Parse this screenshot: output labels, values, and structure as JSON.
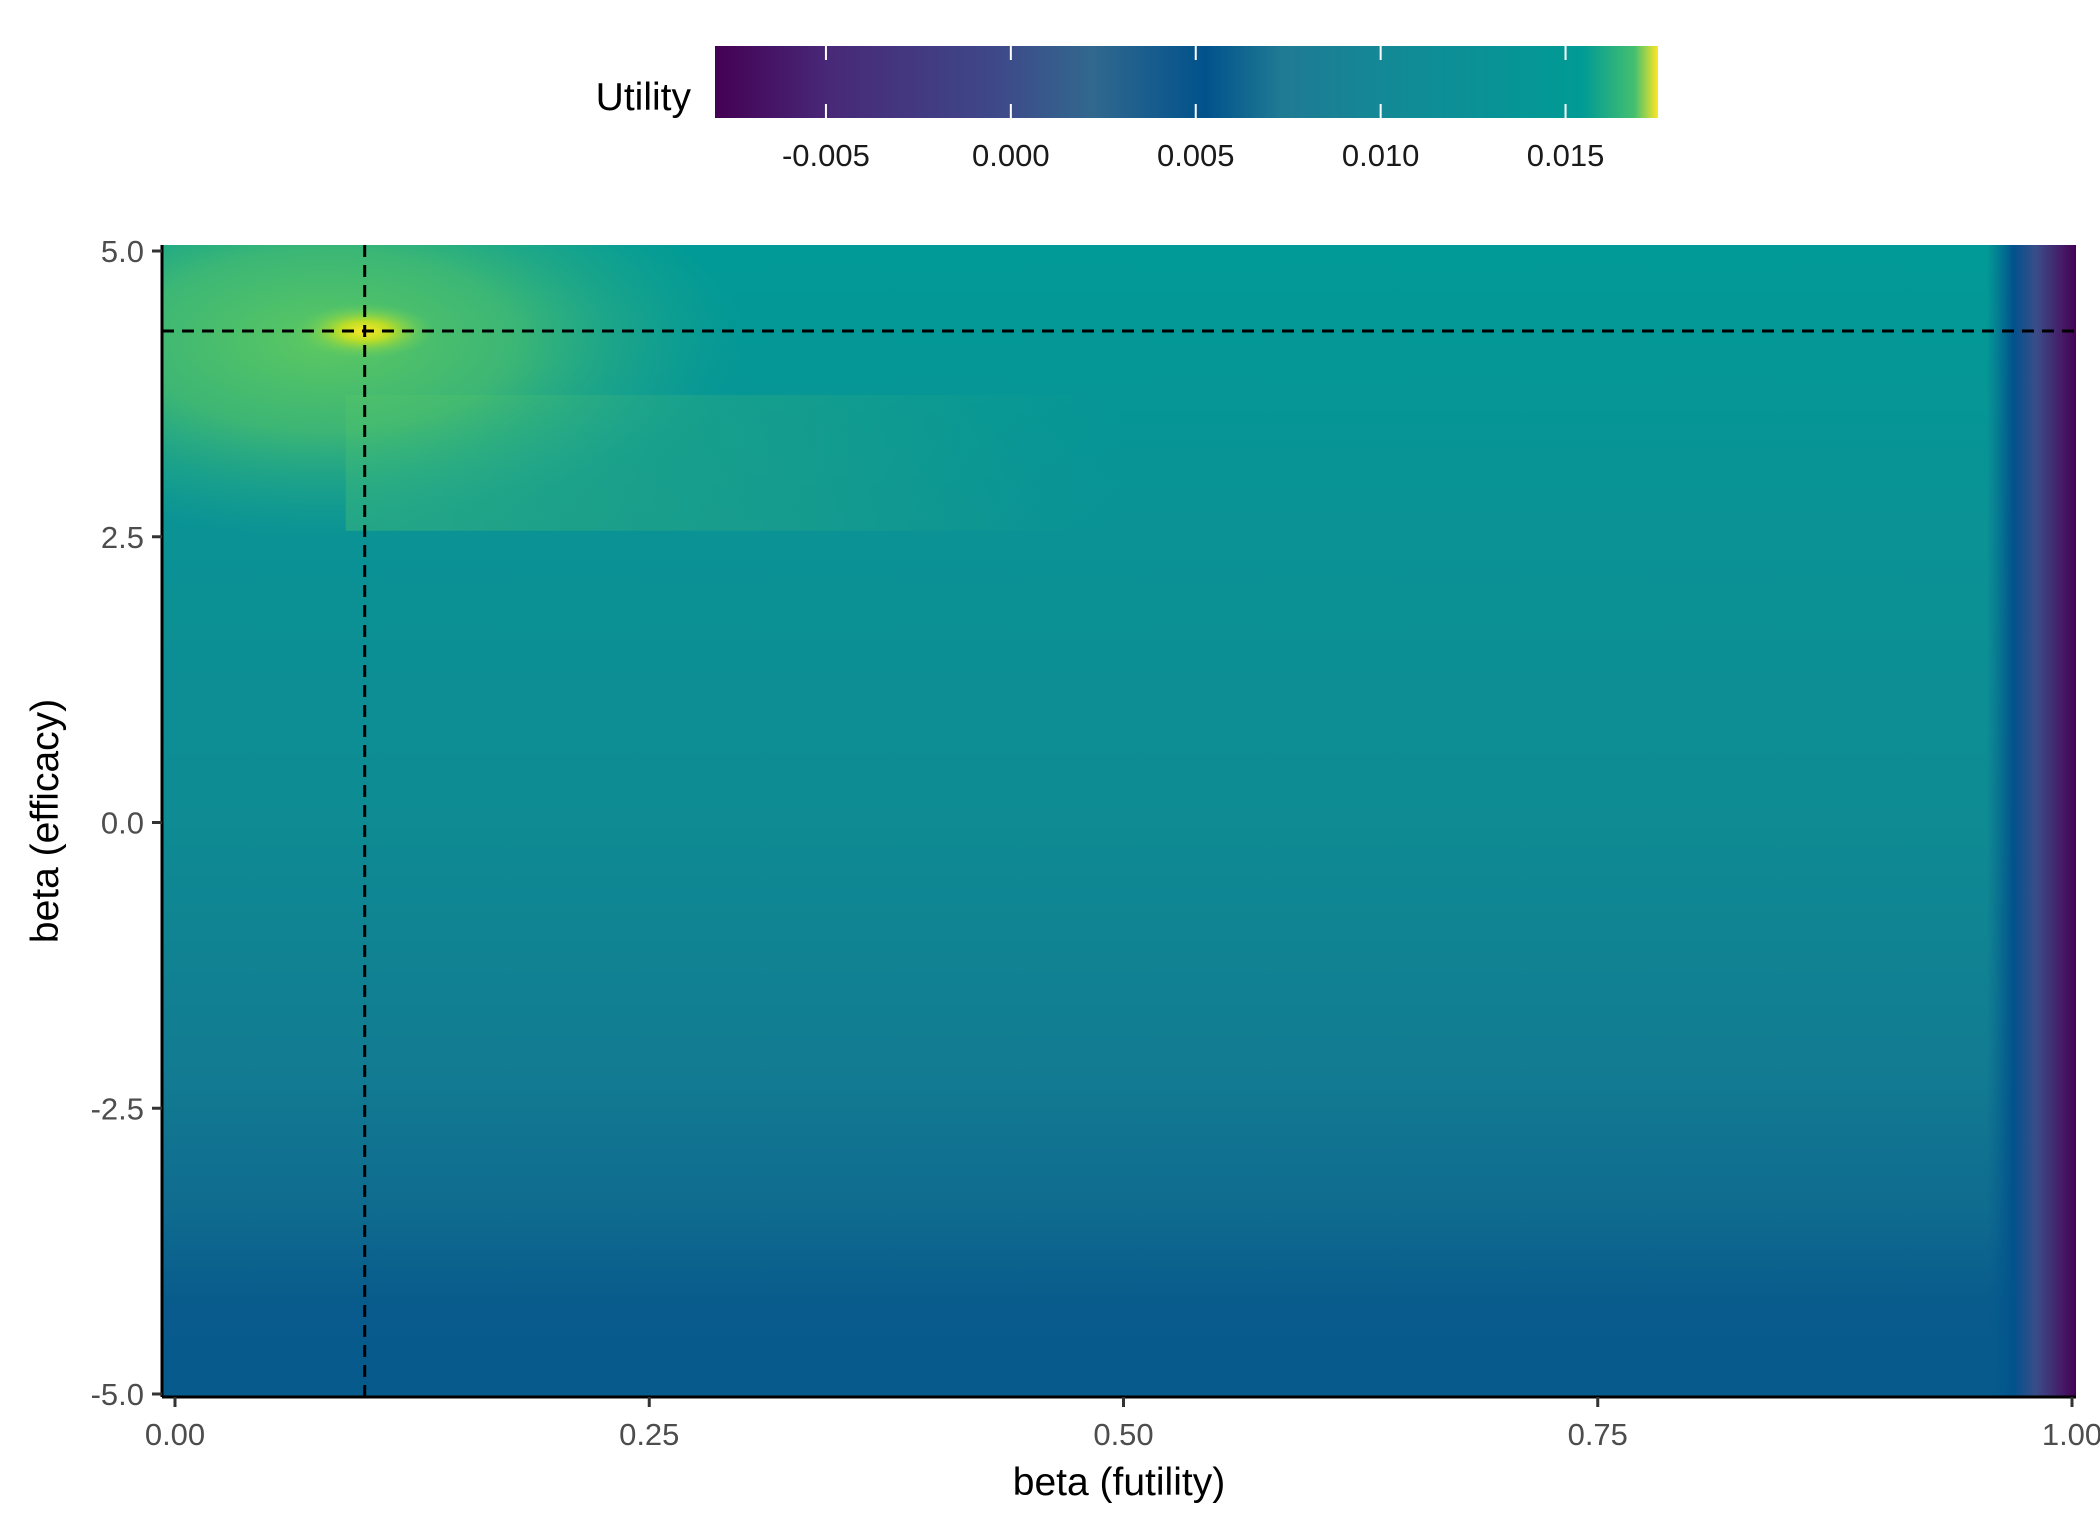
{
  "chart_data": {
    "type": "heatmap",
    "title": "",
    "xlabel": "beta (futility)",
    "ylabel": "beta (efficacy)",
    "xlim": [
      0.0,
      1.0
    ],
    "ylim": [
      -5.0,
      5.0
    ],
    "x_ticks": [
      "0.00",
      "0.25",
      "0.50",
      "0.75",
      "1.00"
    ],
    "x_tick_values": [
      0.0,
      0.25,
      0.5,
      0.75,
      1.0
    ],
    "y_ticks": [
      "-5.0",
      "-2.5",
      "0.0",
      "2.5",
      "5.0"
    ],
    "y_tick_values": [
      -5.0,
      -2.5,
      0.0,
      2.5,
      5.0
    ],
    "grid": false,
    "legend": {
      "title": "Utility",
      "placement": "top",
      "range": [
        -0.008,
        0.0175
      ],
      "ticks": [
        "-0.005",
        "0.000",
        "0.005",
        "0.010",
        "0.015"
      ],
      "tick_values": [
        -0.005,
        0.0,
        0.005,
        0.01,
        0.015
      ],
      "colormap": "viridis",
      "colors": [
        "#440154",
        "#482878",
        "#3e4989",
        "#31688e",
        "#01528c",
        "#1f7a93",
        "#128a96",
        "#009b95",
        "#44bf70",
        "#fde725"
      ]
    },
    "optimum": {
      "x": 0.1,
      "y": 4.3
    },
    "utility_notes": {
      "max_value": 0.0175,
      "min_value": -0.008
    }
  }
}
